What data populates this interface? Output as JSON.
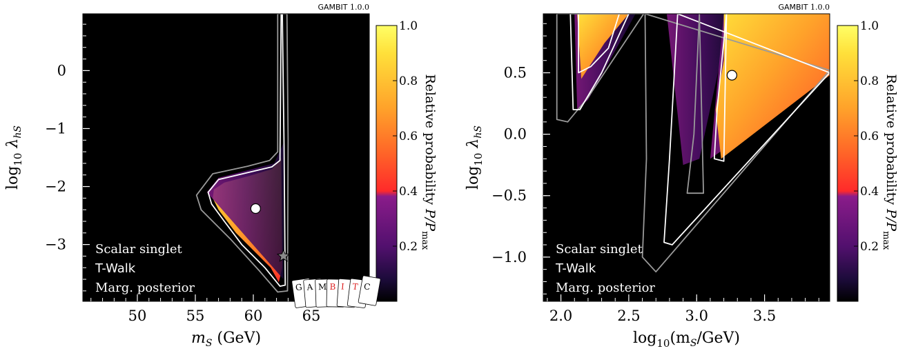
{
  "colors": {
    "background": "#000000",
    "contour_inner": "#ffffff",
    "contour_outer": "#9a9a9a",
    "best_fit": "#ffffff",
    "star": "#8a8a8a",
    "cmap": [
      "#000000",
      "#1c0b3a",
      "#52106e",
      "#8a1c8a",
      "#ff2a2a",
      "#ff6a28",
      "#ffa22a",
      "#ffe03a",
      "#ffff66"
    ]
  },
  "chart_data": [
    {
      "type": "heatmap",
      "badge": {
        "name": "GAMBIT",
        "version": "1.0.0"
      },
      "xlabel_base": "m",
      "xlabel_sub": "S",
      "xlabel_unit": "(GeV)",
      "ylabel_base": "log",
      "ylabel_base_sub": "10",
      "ylabel_sym": "λ",
      "ylabel_sub": "hS",
      "xlim": [
        45.3,
        70.0
      ],
      "ylim": [
        -3.98,
        0.98
      ],
      "xticks": [
        50,
        55,
        60,
        65
      ],
      "xtick_labels": [
        "50",
        "55",
        "60",
        "65"
      ],
      "yticks": [
        0,
        -1,
        -2,
        -3
      ],
      "ytick_labels": [
        "0",
        "−1",
        "−2",
        "−3"
      ],
      "legend_lines": [
        "Scalar singlet",
        "T-Walk",
        "Marg. posterior"
      ],
      "colorbar": {
        "label_main": "Relative probability",
        "label_math": "P/P",
        "label_sub": "max",
        "ticks": [
          0.2,
          0.4,
          0.6,
          0.8,
          1.0
        ],
        "tick_labels": [
          "0.2",
          "0.4",
          "0.6",
          "0.8",
          "1.0"
        ]
      },
      "regions": [
        {
          "level": "high",
          "points": [
            [
              56.6,
              -2.05
            ],
            [
              57.5,
              -1.93
            ],
            [
              59.6,
              -1.82
            ],
            [
              61.6,
              -1.7
            ],
            [
              62.4,
              -1.5
            ],
            [
              62.5,
              -3.4
            ],
            [
              62.2,
              -3.65
            ],
            [
              61.5,
              -3.4
            ],
            [
              60.0,
              -3.1
            ],
            [
              58.5,
              -2.8
            ],
            [
              57.0,
              -2.4
            ],
            [
              56.5,
              -2.2
            ]
          ]
        },
        {
          "level": "mid",
          "points": [
            [
              56.0,
              -2.1
            ],
            [
              57.0,
              -1.85
            ],
            [
              59.5,
              -1.72
            ],
            [
              61.8,
              -1.6
            ],
            [
              62.6,
              -1.25
            ],
            [
              62.6,
              -3.6
            ]
          ]
        }
      ],
      "contours": [
        {
          "level": "inner",
          "points": [
            [
              56.1,
              -2.1
            ],
            [
              57.0,
              -1.88
            ],
            [
              59.5,
              -1.76
            ],
            [
              61.6,
              -1.66
            ],
            [
              62.3,
              -1.55
            ],
            [
              62.4,
              0.98
            ],
            [
              62.5,
              0.98
            ],
            [
              62.65,
              -1.3
            ],
            [
              62.75,
              -3.7
            ],
            [
              62.3,
              -3.72
            ],
            [
              61.0,
              -3.4
            ],
            [
              59.0,
              -3.0
            ],
            [
              57.5,
              -2.6
            ],
            [
              56.4,
              -2.3
            ]
          ]
        },
        {
          "level": "outer",
          "points": [
            [
              55.1,
              -2.15
            ],
            [
              56.5,
              -1.78
            ],
            [
              59.5,
              -1.65
            ],
            [
              61.4,
              -1.55
            ],
            [
              62.1,
              -1.4
            ],
            [
              62.1,
              0.98
            ],
            [
              62.9,
              0.98
            ],
            [
              63.0,
              -1.2
            ],
            [
              62.95,
              -3.8
            ],
            [
              62.1,
              -3.82
            ],
            [
              60.5,
              -3.45
            ],
            [
              58.0,
              -2.9
            ],
            [
              55.5,
              -2.4
            ]
          ]
        }
      ],
      "best_fit": [
        60.2,
        -2.38
      ],
      "best_fit_type": "circle",
      "star": [
        62.6,
        -3.2
      ],
      "cards_logo": [
        "G",
        "A",
        "M",
        "B",
        "I",
        "T",
        "C"
      ]
    },
    {
      "type": "heatmap",
      "badge": {
        "name": "GAMBIT",
        "version": "1.0.0"
      },
      "xlabel_base": "log",
      "xlabel_base_sub": "10",
      "xlabel_sym": "(m",
      "xlabel_sub": "S",
      "xlabel_unit": "/GeV)",
      "ylabel_base": "log",
      "ylabel_base_sub": "10",
      "ylabel_sym": "λ",
      "ylabel_sub": "hS",
      "xlim": [
        1.87,
        3.98
      ],
      "ylim": [
        -1.36,
        0.98
      ],
      "xticks": [
        2.0,
        2.5,
        3.0,
        3.5
      ],
      "xtick_labels": [
        "2.0",
        "2.5",
        "3.0",
        "3.5"
      ],
      "yticks": [
        0.5,
        0.0,
        -0.5,
        -1.0
      ],
      "ytick_labels": [
        "0.5",
        "0.0",
        "−0.5",
        "−1.0"
      ],
      "legend_lines": [
        "Scalar singlet",
        "T-Walk",
        "Marg. posterior"
      ],
      "colorbar": {
        "label_main": "Relative probability",
        "label_math": "P/P",
        "label_sub": "max",
        "ticks": [
          0.2,
          0.4,
          0.6,
          0.8,
          1.0
        ],
        "tick_labels": [
          "0.2",
          "0.4",
          "0.6",
          "0.8",
          "1.0"
        ]
      },
      "regions": [
        {
          "level": "mid",
          "points": [
            [
              2.1,
              0.98
            ],
            [
              2.55,
              0.98
            ],
            [
              2.2,
              0.28
            ],
            [
              2.12,
              0.2
            ]
          ]
        },
        {
          "level": "high",
          "points": [
            [
              2.12,
              0.98
            ],
            [
              2.5,
              0.98
            ],
            [
              2.32,
              0.74
            ],
            [
              2.15,
              0.45
            ]
          ]
        },
        {
          "level": "mid",
          "points": [
            [
              2.78,
              0.98
            ],
            [
              3.25,
              0.98
            ],
            [
              3.02,
              -0.2
            ],
            [
              2.9,
              -0.25
            ]
          ]
        },
        {
          "level": "mid",
          "points": [
            [
              3.2,
              0.98
            ],
            [
              3.98,
              0.98
            ],
            [
              3.98,
              0.48
            ],
            [
              3.1,
              -0.2
            ]
          ]
        },
        {
          "level": "high",
          "points": [
            [
              3.2,
              0.98
            ],
            [
              3.98,
              0.98
            ],
            [
              3.98,
              0.48
            ],
            [
              3.18,
              -0.2
            ],
            [
              3.14,
              0.2
            ],
            [
              3.2,
              0.6
            ]
          ]
        }
      ],
      "contours": [
        {
          "level": "outer",
          "points": [
            [
              1.97,
              0.98
            ],
            [
              1.97,
              0.12
            ],
            [
              2.05,
              0.1
            ],
            [
              2.2,
              0.3
            ],
            [
              2.61,
              0.98
            ]
          ]
        },
        {
          "level": "inner",
          "points": [
            [
              2.07,
              0.98
            ],
            [
              2.09,
              0.2
            ],
            [
              2.14,
              0.2
            ],
            [
              2.3,
              0.5
            ],
            [
              2.5,
              0.98
            ]
          ]
        },
        {
          "level": "inner",
          "points": [
            [
              2.13,
              0.98
            ],
            [
              2.13,
              0.5
            ],
            [
              2.22,
              0.55
            ],
            [
              2.35,
              0.7
            ],
            [
              2.43,
              0.98
            ]
          ]
        },
        {
          "level": "outer",
          "points": [
            [
              2.62,
              0.98
            ],
            [
              2.63,
              -0.2
            ],
            [
              2.6,
              -1.0
            ],
            [
              2.7,
              -1.12
            ],
            [
              3.98,
              0.52
            ]
          ]
        },
        {
          "level": "inner",
          "points": [
            [
              2.86,
              0.98
            ],
            [
              2.8,
              -0.2
            ],
            [
              2.76,
              -0.88
            ],
            [
              2.82,
              -0.9
            ],
            [
              3.98,
              0.5
            ]
          ]
        },
        {
          "level": "outer",
          "points": [
            [
              3.02,
              0.98
            ],
            [
              2.98,
              0.0
            ],
            [
              2.93,
              -0.48
            ],
            [
              3.05,
              -0.48
            ]
          ]
        },
        {
          "level": "inner",
          "points": [
            [
              3.22,
              0.98
            ],
            [
              3.15,
              0.2
            ],
            [
              3.13,
              -0.2
            ],
            [
              3.2,
              -0.22
            ]
          ]
        }
      ],
      "best_fit": [
        3.26,
        0.48
      ],
      "best_fit_type": "circle"
    }
  ]
}
